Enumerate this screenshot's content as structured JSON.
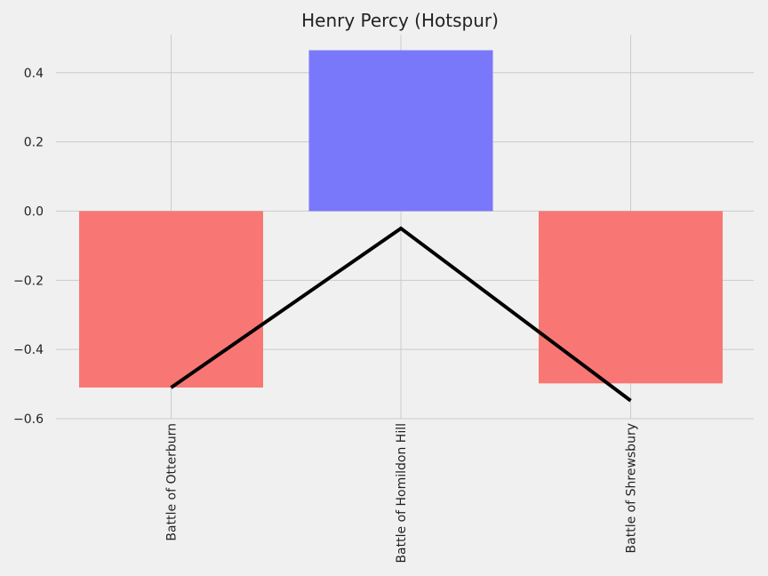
{
  "chart_data": {
    "type": "bar",
    "title": "Henry Percy (Hotspur)",
    "xlabel": "",
    "ylabel": "",
    "categories": [
      "Battle of Otterburn",
      "Battle of Homildon Hill",
      "Battle of Shrewsbury"
    ],
    "series": [
      {
        "type": "bar",
        "values": [
          -0.51,
          0.465,
          -0.498
        ]
      },
      {
        "type": "line",
        "values": [
          -0.51,
          -0.05,
          -0.548
        ]
      }
    ],
    "ylim": [
      -0.6,
      0.51
    ],
    "yticks": [
      -0.6,
      -0.4,
      -0.2,
      0.0,
      0.2,
      0.4
    ],
    "ytick_labels": [
      "−0.6",
      "−0.4",
      "−0.2",
      "0.0",
      "0.2",
      "0.4"
    ],
    "grid": true,
    "colors": {
      "positive": "#7a78fa",
      "negative": "#f87774",
      "line": "#000000",
      "grid": "#cbcbcb",
      "background": "#f0f0f0"
    }
  }
}
